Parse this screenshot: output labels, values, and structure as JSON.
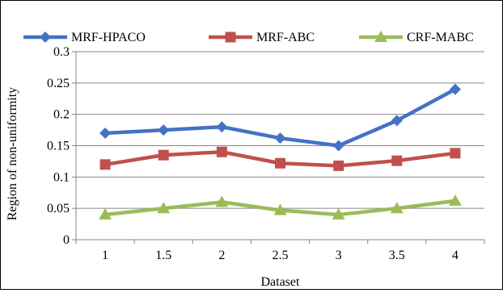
{
  "chart_data": {
    "type": "line",
    "title": "",
    "xlabel": "Dataset",
    "ylabel": "Region of non-uniformity",
    "categories": [
      "1",
      "1.5",
      "2",
      "2.5",
      "3",
      "3.5",
      "4"
    ],
    "ylim": [
      0,
      0.3
    ],
    "yticks": [
      "0",
      "0.05",
      "0.1",
      "0.15",
      "0.2",
      "0.25",
      "0.3"
    ],
    "grid": "horizontal",
    "legend_position": "top",
    "series": [
      {
        "name": "MRF-HPACO",
        "color": "#4472C4",
        "marker": "diamond",
        "values": [
          0.17,
          0.175,
          0.18,
          0.162,
          0.15,
          0.19,
          0.24
        ]
      },
      {
        "name": "MRF-ABC",
        "color": "#C0504D",
        "marker": "square",
        "values": [
          0.12,
          0.135,
          0.14,
          0.122,
          0.118,
          0.126,
          0.138
        ]
      },
      {
        "name": "CRF-MABC",
        "color": "#9BBB59",
        "marker": "triangle",
        "values": [
          0.04,
          0.05,
          0.06,
          0.047,
          0.04,
          0.05,
          0.062
        ]
      }
    ]
  }
}
